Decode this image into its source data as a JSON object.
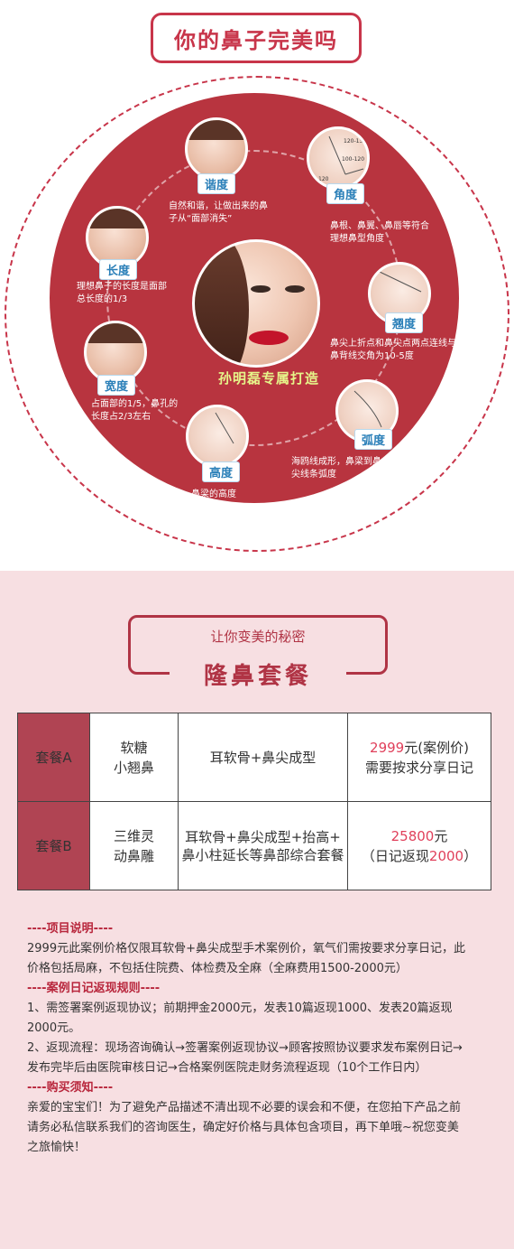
{
  "section1": {
    "title": "你的鼻子完美吗",
    "brand": "孙明磊专属打造",
    "nodes": [
      {
        "key": "harmony",
        "label": "谐度",
        "desc": "自然和谐，让做出来的鼻子从“面部消失”"
      },
      {
        "key": "angle",
        "label": "角度",
        "desc": "鼻根、鼻翼、鼻唇等符合理想鼻型角度"
      },
      {
        "key": "length",
        "label": "长度",
        "desc": "理想鼻子的长度是面部总长度的1/3"
      },
      {
        "key": "tilt",
        "label": "翘度",
        "desc": "鼻尖上折点和鼻尖点两点连线与鼻背线交角为10-5度"
      },
      {
        "key": "width",
        "label": "宽度",
        "desc": "占面部的1/5，鼻孔的长度占2/3左右"
      },
      {
        "key": "curve",
        "label": "弧度",
        "desc": "海鸥线成形，鼻梁到鼻尖线条弧度"
      },
      {
        "key": "height",
        "label": "高度",
        "desc": "鼻梁的高度"
      }
    ],
    "angle_marks": [
      "120-130",
      "100-120",
      "120"
    ]
  },
  "section2": {
    "subtitle": "让你变美的秘密",
    "title": "隆鼻套餐",
    "rows": [
      {
        "head": "套餐A",
        "name_line1": "软糖",
        "name_line2": "小翘鼻",
        "content_line1": "耳软骨+鼻尖成型",
        "content_line2": "",
        "price": "2999",
        "price_suffix": "元(案例价)",
        "price_line2": "需要按求分享日记",
        "price_line2_prefix": "",
        "price_line2_hl": "",
        "price_line2_suffix": ""
      },
      {
        "head": "套餐B",
        "name_line1": "三维灵",
        "name_line2": "动鼻雕",
        "content_line1": "耳软骨+鼻尖成型+抬高+",
        "content_line2": "鼻小柱延长等鼻部综合套餐",
        "price": "25800",
        "price_suffix": "元",
        "price_line2": "",
        "price_line2_prefix": "（日记返现",
        "price_line2_hl": "2000",
        "price_line2_suffix": "）"
      }
    ],
    "notes": {
      "h1": "----项目说明----",
      "p1": "2999元此案例价格仅限耳软骨+鼻尖成型手术案例价，氧气们需按要求分享日记，此价格包括局麻，不包括住院费、体检费及全麻（全麻费用1500-2000元）",
      "h2": "----案例日记返现规则----",
      "p2": "1、需签署案例返现协议；前期押金2000元，发表10篇返现1000、发表20篇返现2000元。",
      "p3": "2、返现流程：现场咨询确认→签署案例返现协议→顾客按照协议要求发布案例日记→发布完毕后由医院审核日记→合格案例医院走财务流程返现（10个工作日内）",
      "h3": "----购买须知----",
      "p4": "亲爱的宝宝们！为了避免产品描述不清出现不必要的误会和不便，在您拍下产品之前请务必私信联系我们的咨询医生，确定好价格与具体包含项目，再下单哦~祝您变美之旅愉快！"
    }
  },
  "colors": {
    "accent_red": "#c8354a",
    "circle_red": "#b8343f",
    "pink_bg": "#f7dfe2",
    "badge_blue": "#2a7fb8",
    "brand_yellow": "#e6f58a"
  }
}
